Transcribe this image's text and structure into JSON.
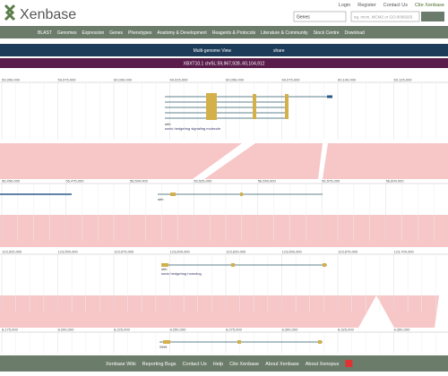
{
  "header": {
    "logo": "Xenbase",
    "links": [
      "Login",
      "Register",
      "Contact Us",
      "Cite Xenbase"
    ],
    "search_select": "Genes",
    "search_placeholder": "eg. mcm, MCM2 or GO:0008283"
  },
  "nav": [
    "BLAST",
    "Genomes",
    "Expression",
    "Genes",
    "Phenotypes",
    "Anatomy & Development",
    "Reagents & Protocols",
    "Literature & Community",
    "Stock Centre",
    "Download"
  ],
  "viewer": {
    "title": "Multi-genome View",
    "share": "share",
    "locus": "XBXT10.1 chr5L:59,967,928..60,104,912"
  },
  "tracks": [
    {
      "ticks": [
        "59,950,000",
        "59,975,000",
        "60,000,000",
        "60,025,000",
        "60,050,000",
        "60,075,000",
        "60,100,000",
        "60,125,000"
      ],
      "genes": [
        "shh",
        "sonic hedgehog signaling molecule"
      ]
    },
    {
      "ticks": [
        "56,450,000",
        "56,475,000",
        "56,500,000",
        "56,525,000",
        "56,550,000",
        "56,575,000",
        "56,600,000"
      ],
      "genes": [
        "shh"
      ]
    },
    {
      "ticks": [
        "123,525,000",
        "123,550,000",
        "123,575,000",
        "123,600,000",
        "123,625,000",
        "123,650,000",
        "123,675,000",
        "123,700,000"
      ],
      "genes": [
        "shh",
        "sonic hedgehog homolog"
      ]
    },
    {
      "ticks": [
        "8,175,000",
        "8,200,000",
        "8,225,000",
        "8,250,000",
        "8,275,000",
        "8,300,000",
        "8,325,000",
        "8,350,000"
      ],
      "genes": [
        "SHH"
      ]
    }
  ],
  "footer": [
    "Xenbase Wiki",
    "Reporting Bugs",
    "Contact Us",
    "Help",
    "Cite Xenbase",
    "About Xenbase",
    "About Xenopus"
  ]
}
